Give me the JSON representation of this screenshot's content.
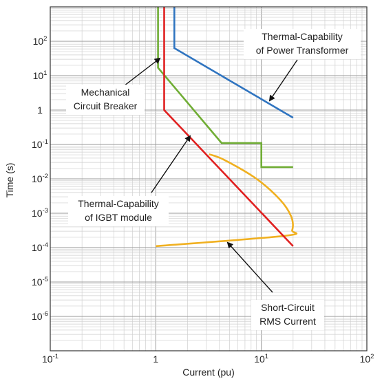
{
  "chart_data": {
    "type": "line",
    "title": "",
    "xlabel": "Current (pu)",
    "ylabel": "Time (s)",
    "xscale": "log",
    "yscale": "log",
    "xlim": [
      0.1,
      100
    ],
    "ylim": [
      1e-07,
      1000
    ],
    "grid": true,
    "x_ticks": [
      {
        "value": 0.1,
        "base": "10",
        "exp": "-1"
      },
      {
        "value": 1,
        "base": "1",
        "exp": ""
      },
      {
        "value": 10,
        "base": "10",
        "exp": "1"
      },
      {
        "value": 100,
        "base": "10",
        "exp": "2"
      }
    ],
    "y_ticks": [
      {
        "value": 100,
        "base": "10",
        "exp": "2"
      },
      {
        "value": 10,
        "base": "10",
        "exp": "1"
      },
      {
        "value": 1,
        "base": "1",
        "exp": ""
      },
      {
        "value": 0.1,
        "base": "10",
        "exp": "-1"
      },
      {
        "value": 0.01,
        "base": "10",
        "exp": "-2"
      },
      {
        "value": 0.001,
        "base": "10",
        "exp": "-3"
      },
      {
        "value": 0.0001,
        "base": "10",
        "exp": "-4"
      },
      {
        "value": 1e-05,
        "base": "10",
        "exp": "-5"
      },
      {
        "value": 1e-06,
        "base": "10",
        "exp": "-6"
      }
    ],
    "series": [
      {
        "key": "transformer",
        "color": "#2f74c0",
        "points": [
          [
            1.5,
            1000
          ],
          [
            1.5,
            63
          ],
          [
            20,
            0.6
          ]
        ]
      },
      {
        "key": "breaker",
        "color": "#70ad35",
        "points": [
          [
            1.05,
            1000
          ],
          [
            1.05,
            17
          ],
          [
            4.2,
            0.11
          ],
          [
            10,
            0.11
          ],
          [
            10,
            0.022
          ],
          [
            20,
            0.022
          ]
        ]
      },
      {
        "key": "igbt",
        "color": "#e02020",
        "points": [
          [
            1.2,
            1000
          ],
          [
            1.2,
            1
          ],
          [
            20,
            0.00011
          ]
        ]
      },
      {
        "key": "short_circuit",
        "color": "#f0b020",
        "points": [
          [
            1.0,
            0.00011
          ],
          [
            16.5,
            0.00022
          ],
          [
            19.6,
            0.00032
          ],
          [
            19.2,
            0.0008
          ],
          [
            15,
            0.0025
          ],
          [
            9,
            0.01
          ],
          [
            4.5,
            0.035
          ],
          [
            3.2,
            0.052
          ]
        ]
      }
    ],
    "annotations": [
      {
        "key": "transformer",
        "lines": [
          "Thermal-Capability",
          "of Power Transformer"
        ]
      },
      {
        "key": "breaker",
        "lines": [
          "Mechanical",
          "Circuit Breaker"
        ]
      },
      {
        "key": "igbt",
        "lines": [
          "Thermal-Capability",
          "of IGBT module"
        ]
      },
      {
        "key": "short_circuit",
        "lines": [
          "Short-Circuit",
          "RMS Current"
        ]
      }
    ]
  }
}
